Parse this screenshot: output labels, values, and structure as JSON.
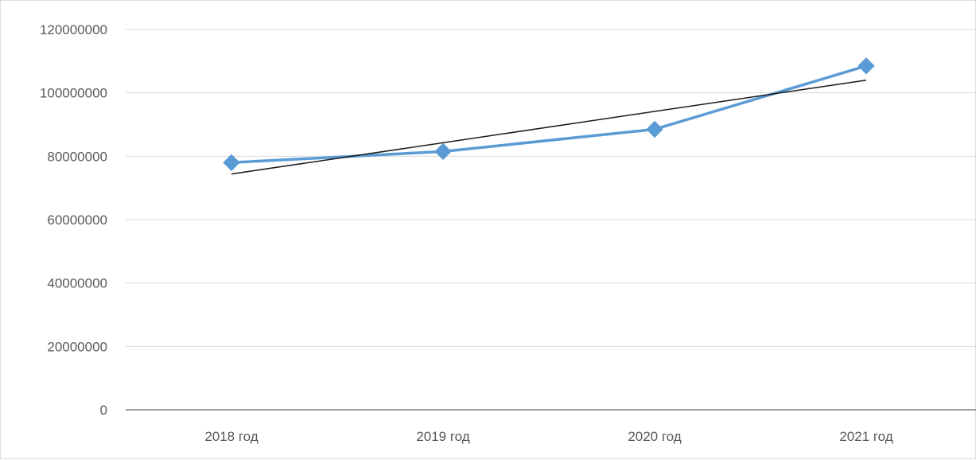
{
  "chart_data": {
    "type": "line",
    "title": "",
    "xlabel": "",
    "ylabel": "",
    "categories": [
      "2018 год",
      "2019 год",
      "2020 год",
      "2021 год"
    ],
    "series": [
      {
        "values": [
          78000000,
          81500000,
          88500000,
          108500000
        ],
        "color": "#5b9bd5",
        "marker": "diamond"
      }
    ],
    "trendline": {
      "kind": "linear",
      "values": [
        74400000,
        84300000,
        94200000,
        104000000
      ],
      "color": "#1a1a1a"
    },
    "ylim": [
      0,
      120000000
    ],
    "yticks": [
      0,
      20000000,
      40000000,
      60000000,
      80000000,
      100000000,
      120000000
    ],
    "ytick_labels": [
      "0",
      "20000000",
      "40000000",
      "60000000",
      "80000000",
      "100000000",
      "120000000"
    ],
    "grid": true,
    "legend": "none",
    "colors": {
      "grid": "#d9d9d9",
      "axis": "#a6a6a6",
      "text": "#595959"
    }
  }
}
